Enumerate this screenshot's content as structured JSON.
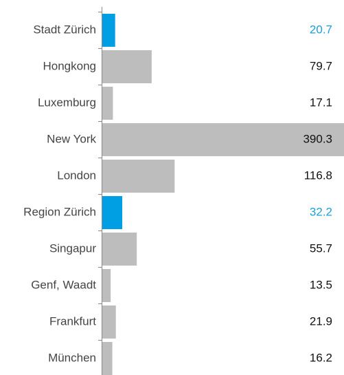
{
  "chart_data": {
    "type": "barh",
    "categories": [
      "Stadt Zürich",
      "Hongkong",
      "Luxemburg",
      "New York",
      "London",
      "Region Zürich",
      "Singapur",
      "Genf, Waadt",
      "Frankfurt",
      "München"
    ],
    "values": [
      20.7,
      79.7,
      17.1,
      390.3,
      116.8,
      32.2,
      55.7,
      13.5,
      21.9,
      16.2
    ],
    "colors": [
      "#009fe3",
      "#bdbdbd",
      "#bdbdbd",
      "#bdbdbd",
      "#bdbdbd",
      "#009fe3",
      "#bdbdbd",
      "#bdbdbd",
      "#bdbdbd",
      "#bdbdbd"
    ],
    "label_colors": [
      "#1a9fd8",
      "#111111",
      "#111111",
      "#111111",
      "#111111",
      "#1a9fd8",
      "#111111",
      "#111111",
      "#111111",
      "#111111"
    ],
    "xlim": [
      0,
      390.3
    ]
  }
}
